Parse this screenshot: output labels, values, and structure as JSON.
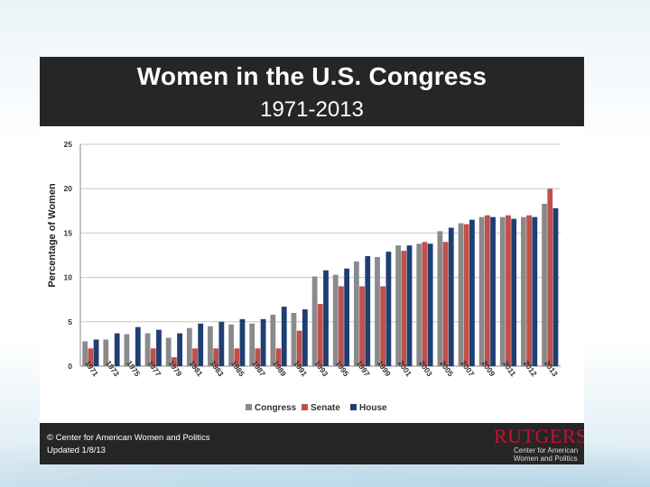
{
  "header": {
    "title": "Women in the U.S. Congress",
    "subtitle": "1971-2013"
  },
  "footer": {
    "copyright": "© Center for American Women and Politics",
    "updated": "Updated 1/8/13",
    "logo_word": "RUTGERS",
    "logo_sub_line1": "Center for American",
    "logo_sub_line2": "Women and Politics"
  },
  "colors": {
    "congress": "#8a8a8a",
    "senate": "#c0504d",
    "house": "#1f3f73"
  },
  "chart_data": {
    "type": "bar",
    "title": "Women in the U.S. Congress",
    "subtitle": "1971-2013",
    "xlabel": "",
    "ylabel": "Percentage of Women",
    "ylim": [
      0,
      25
    ],
    "yticks": [
      0,
      5,
      10,
      15,
      20,
      25
    ],
    "grid": true,
    "legend_position": "bottom",
    "categories": [
      "1971",
      "1973",
      "1975",
      "1977",
      "1979",
      "1981",
      "1983",
      "1985",
      "1987",
      "1989",
      "1991",
      "1993",
      "1995",
      "1997",
      "1999",
      "2001",
      "2003",
      "2005",
      "2007",
      "2009",
      "2011",
      "2012",
      "2013"
    ],
    "series": [
      {
        "name": "Congress",
        "values": [
          2.8,
          3.0,
          3.6,
          3.7,
          3.2,
          4.3,
          4.5,
          4.7,
          4.8,
          5.8,
          6.0,
          10.1,
          10.3,
          11.8,
          12.3,
          13.6,
          13.8,
          15.2,
          16.1,
          16.8,
          16.8,
          16.8,
          18.3
        ]
      },
      {
        "name": "Senate",
        "values": [
          2.0,
          0.0,
          0.0,
          2.0,
          1.0,
          2.0,
          2.0,
          2.0,
          2.0,
          2.0,
          4.0,
          7.0,
          9.0,
          9.0,
          9.0,
          13.0,
          14.0,
          14.0,
          16.0,
          17.0,
          17.0,
          17.0,
          20.0
        ]
      },
      {
        "name": "House",
        "values": [
          3.0,
          3.7,
          4.4,
          4.1,
          3.7,
          4.8,
          5.0,
          5.3,
          5.3,
          6.7,
          6.4,
          10.8,
          11.0,
          12.4,
          12.9,
          13.6,
          13.8,
          15.6,
          16.5,
          16.8,
          16.6,
          16.8,
          17.8
        ]
      }
    ]
  }
}
